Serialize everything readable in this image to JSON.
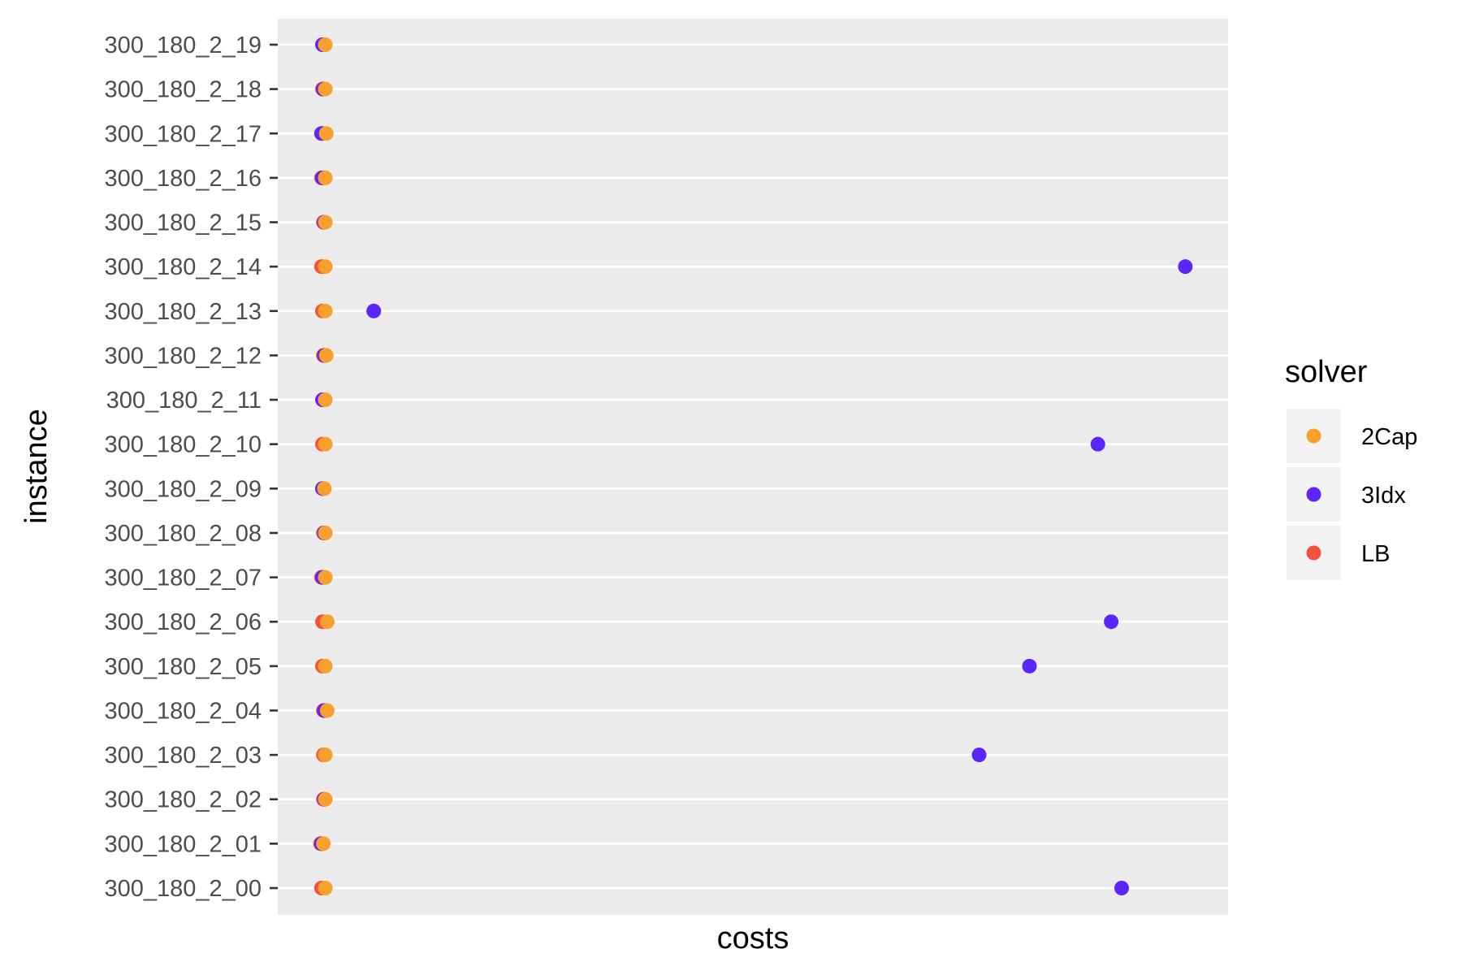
{
  "chart_data": {
    "type": "scatter",
    "xlabel": "costs",
    "ylabel": "instance",
    "xlim": [
      0,
      100
    ],
    "x_tick_labels_shown": false,
    "grid": true,
    "legend_position": "right",
    "legend_title": "solver",
    "categories": [
      "300_180_2_00",
      "300_180_2_01",
      "300_180_2_02",
      "300_180_2_03",
      "300_180_2_04",
      "300_180_2_05",
      "300_180_2_06",
      "300_180_2_07",
      "300_180_2_08",
      "300_180_2_09",
      "300_180_2_10",
      "300_180_2_11",
      "300_180_2_12",
      "300_180_2_13",
      "300_180_2_14",
      "300_180_2_15",
      "300_180_2_16",
      "300_180_2_17",
      "300_180_2_18",
      "300_180_2_19"
    ],
    "series": [
      {
        "name": "2Cap",
        "color": "#F8A02E",
        "values": [
          5.0,
          4.8,
          5.0,
          5.0,
          5.2,
          5.0,
          5.2,
          5.0,
          5.0,
          4.9,
          5.0,
          5.0,
          5.1,
          5.0,
          5.0,
          5.0,
          5.0,
          5.1,
          5.0,
          5.0
        ]
      },
      {
        "name": "3Idx",
        "color": "#5C26FA",
        "values": [
          88.8,
          4.6,
          4.9,
          73.8,
          4.9,
          79.1,
          87.7,
          4.7,
          4.9,
          4.7,
          86.3,
          4.7,
          4.9,
          10.1,
          95.5,
          4.9,
          4.7,
          4.6,
          4.8,
          4.7
        ]
      },
      {
        "name": "LB",
        "color": "#F4523C",
        "values": [
          4.6,
          4.5,
          4.8,
          4.8,
          4.8,
          4.7,
          4.7,
          4.6,
          4.8,
          4.7,
          4.7,
          4.8,
          4.8,
          4.7,
          4.6,
          4.8,
          4.6,
          4.7,
          4.7,
          4.8
        ]
      }
    ]
  }
}
